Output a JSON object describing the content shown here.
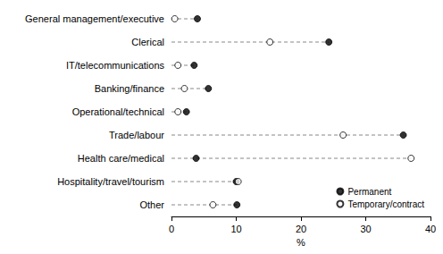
{
  "chart_data": {
    "type": "dot",
    "orientation": "horizontal",
    "xlabel": "%",
    "categories": [
      "General management/executive",
      "Clerical",
      "IT/telecommunications",
      "Banking/finance",
      "Operational/technical",
      "Trade/labour",
      "Health care/medical",
      "Hospitality/travel/tourism",
      "Other"
    ],
    "series": [
      {
        "name": "Permanent",
        "color": "#000000",
        "marker": "filled",
        "values": [
          4.0,
          24.3,
          3.5,
          5.7,
          2.3,
          35.8,
          3.8,
          10.0,
          10.1
        ]
      },
      {
        "name": "Temporary/contract",
        "color": "#000000",
        "marker": "open",
        "values": [
          0.5,
          15.2,
          1.0,
          2.0,
          1.0,
          26.5,
          37.0,
          10.3,
          6.4
        ]
      }
    ],
    "xlim": [
      0,
      40
    ],
    "xticks": [
      0,
      10,
      20,
      30,
      40
    ],
    "legend": "lower right",
    "line_style": "dashed",
    "grid": false
  }
}
